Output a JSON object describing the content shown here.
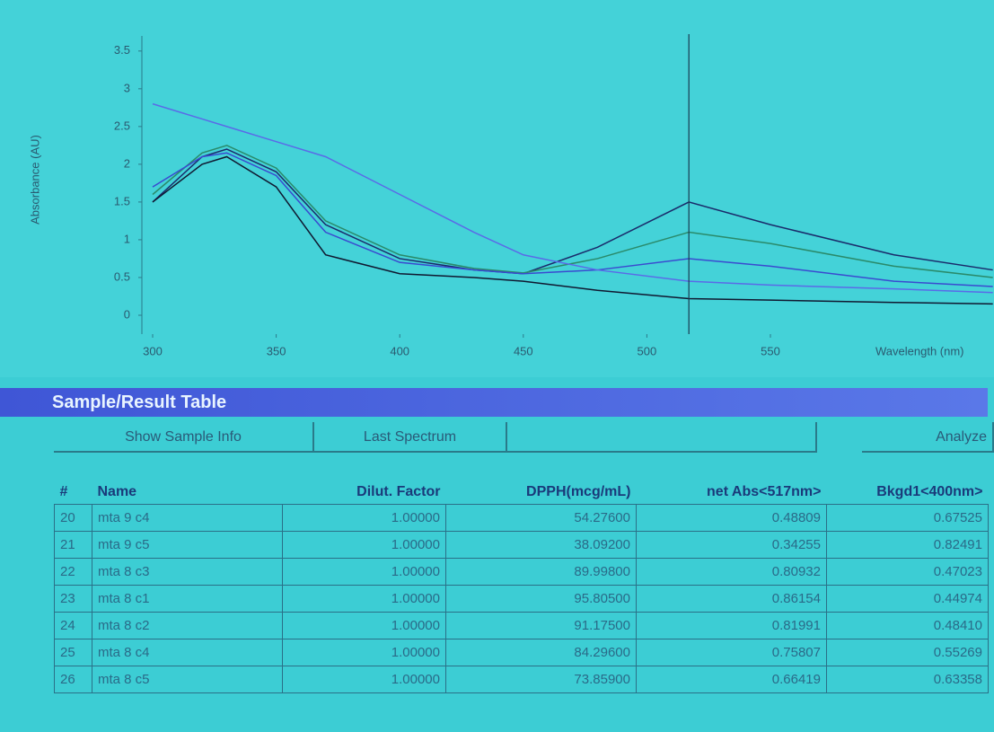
{
  "spectrum": {
    "type": "line",
    "ylabel": "Absorbance (AU)",
    "xlabel": "Wavelength (nm)",
    "xlim": [
      295,
      640
    ],
    "ylim": [
      -0.25,
      3.7
    ],
    "xticks": [
      300,
      350,
      400,
      450,
      500,
      550
    ],
    "yticks": [
      0,
      0.5,
      1,
      1.5,
      2,
      2.5,
      3,
      3.5
    ],
    "cursor_x": 517,
    "x": [
      300,
      320,
      330,
      350,
      370,
      400,
      430,
      450,
      480,
      517,
      550,
      600,
      640
    ],
    "series": [
      {
        "color": "#1a2a6a",
        "values": [
          1.5,
          2.1,
          2.2,
          1.9,
          1.2,
          0.75,
          0.6,
          0.55,
          0.9,
          1.5,
          1.2,
          0.8,
          0.6
        ]
      },
      {
        "color": "#2a8a6a",
        "values": [
          1.6,
          2.15,
          2.25,
          1.95,
          1.25,
          0.8,
          0.62,
          0.56,
          0.75,
          1.1,
          0.95,
          0.65,
          0.5
        ]
      },
      {
        "color": "#3a4ad0",
        "values": [
          1.7,
          2.1,
          2.15,
          1.85,
          1.1,
          0.7,
          0.6,
          0.55,
          0.6,
          0.75,
          0.65,
          0.45,
          0.38
        ]
      },
      {
        "color": "#101830",
        "values": [
          1.5,
          2.0,
          2.1,
          1.7,
          0.8,
          0.55,
          0.5,
          0.45,
          0.33,
          0.22,
          0.2,
          0.17,
          0.15
        ]
      },
      {
        "color": "#5a6ae8",
        "values": [
          2.8,
          2.6,
          2.5,
          2.3,
          2.1,
          1.6,
          1.1,
          0.8,
          0.6,
          0.45,
          0.4,
          0.35,
          0.3
        ]
      }
    ]
  },
  "window": {
    "title": "Sample/Result Table",
    "buttons": [
      "Show Sample Info",
      "Last Spectrum",
      "Analyze"
    ]
  },
  "table": {
    "columns": [
      "#",
      "Name",
      "Dilut. Factor",
      "DPPH(mcg/mL)",
      "net Abs<517nm>",
      "Bkgd1<400nm>"
    ],
    "rows": [
      [
        "20",
        "mta 9 c4",
        "1.00000",
        "54.27600",
        "0.48809",
        "0.67525"
      ],
      [
        "21",
        "mta 9 c5",
        "1.00000",
        "38.09200",
        "0.34255",
        "0.82491"
      ],
      [
        "22",
        "mta 8 c3",
        "1.00000",
        "89.99800",
        "0.80932",
        "0.47023"
      ],
      [
        "23",
        "mta 8 c1",
        "1.00000",
        "95.80500",
        "0.86154",
        "0.44974"
      ],
      [
        "24",
        "mta 8 c2",
        "1.00000",
        "91.17500",
        "0.81991",
        "0.48410"
      ],
      [
        "25",
        "mta 8 c4",
        "1.00000",
        "84.29600",
        "0.75807",
        "0.55269"
      ],
      [
        "26",
        "mta 8 c5",
        "1.00000",
        "73.85900",
        "0.66419",
        "0.63358"
      ]
    ]
  }
}
